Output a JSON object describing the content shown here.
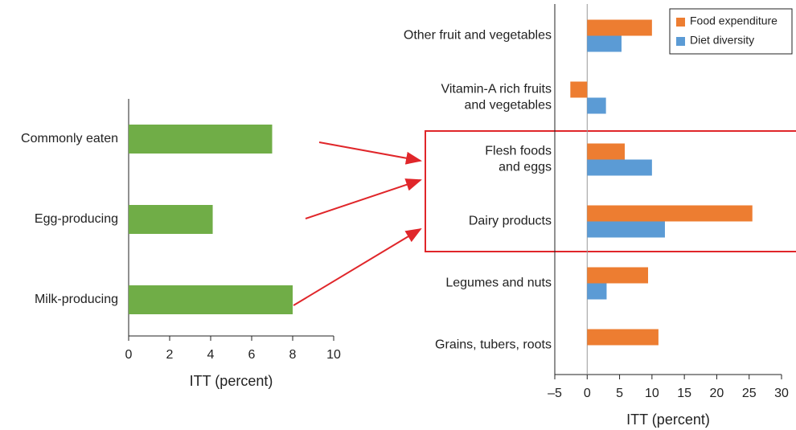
{
  "chart_data": [
    {
      "type": "barh",
      "xlabel": "ITT (percent)",
      "categories": [
        "Commonly eaten",
        "Egg-producing",
        "Milk-producing"
      ],
      "values": [
        7,
        4.1,
        8
      ],
      "color": "#70ad47",
      "xlim": [
        0,
        10
      ],
      "xticks": [
        0,
        2,
        4,
        6,
        8,
        10
      ]
    },
    {
      "type": "grouped_barh",
      "xlabel": "ITT (percent)",
      "categories": [
        "Other fruit and vegetables",
        [
          "Vitamin-A rich fruits",
          "and vegetables"
        ],
        [
          "Flesh foods",
          "and eggs"
        ],
        "Dairy products",
        "Legumes and nuts",
        "Grains, tubers, roots"
      ],
      "series": [
        {
          "name": "Food expenditure",
          "color": "#ed7d31",
          "values": [
            10,
            -2.6,
            5.8,
            25.5,
            9.4,
            11
          ]
        },
        {
          "name": "Diet diversity",
          "color": "#5b9bd5",
          "values": [
            5.3,
            2.9,
            10,
            12,
            3,
            null
          ]
        }
      ],
      "xlim": [
        -5,
        30
      ],
      "xticks": [
        {
          "value": -5,
          "label": "–5"
        },
        0,
        5,
        10,
        15,
        20,
        25,
        30
      ],
      "legend": "upper right"
    }
  ]
}
